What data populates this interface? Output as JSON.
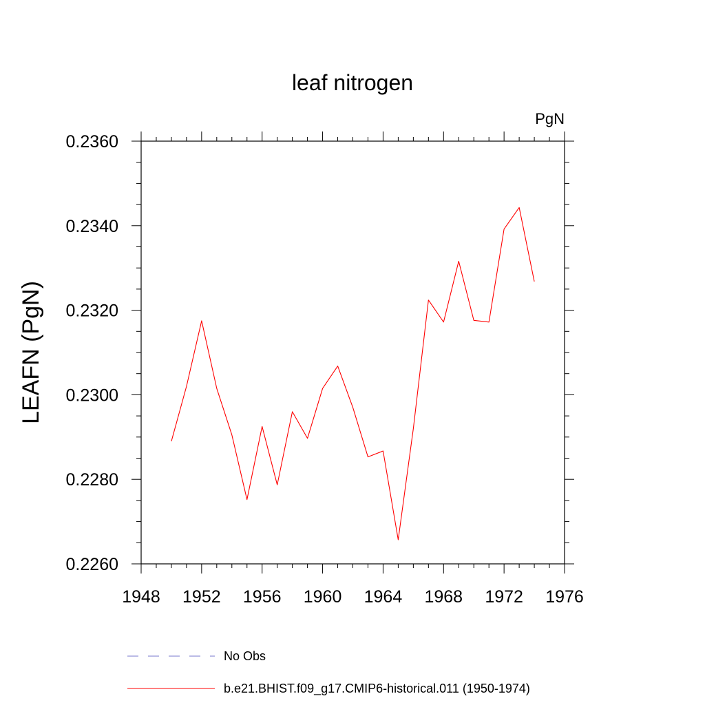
{
  "chart_data": {
    "type": "line",
    "title": "leaf nitrogen",
    "units": "PgN",
    "ylabel": "LEAFN  (PgN)",
    "xlabel": "",
    "xlim": [
      1948,
      1976
    ],
    "ylim": [
      0.226,
      0.236
    ],
    "x_ticks": [
      1948,
      1952,
      1956,
      1960,
      1964,
      1968,
      1972,
      1976
    ],
    "x_tick_labels": [
      "1948",
      "1952",
      "1956",
      "1960",
      "1964",
      "1968",
      "1972",
      "1976"
    ],
    "y_ticks": [
      0.226,
      0.228,
      0.23,
      0.232,
      0.234,
      0.236
    ],
    "y_tick_labels": [
      "0.2260",
      "0.2280",
      "0.2300",
      "0.2320",
      "0.2340",
      "0.2360"
    ],
    "grid": false,
    "legend_position": "bottom",
    "series": [
      {
        "name": "b.e21.BHIST.f09_g17.CMIP6-historical.011 (1950-1974)",
        "color": "#ff0000",
        "style": "solid",
        "x": [
          1950,
          1951,
          1952,
          1953,
          1954,
          1955,
          1956,
          1957,
          1958,
          1959,
          1960,
          1961,
          1962,
          1963,
          1964,
          1965,
          1966,
          1967,
          1968,
          1969,
          1970,
          1971,
          1972,
          1973,
          1974
        ],
        "values": [
          0.2289,
          0.2302,
          0.23175,
          0.23015,
          0.22905,
          0.22752,
          0.22925,
          0.22787,
          0.2296,
          0.22897,
          0.23015,
          0.23068,
          0.2297,
          0.22853,
          0.22867,
          0.22657,
          0.2292,
          0.23224,
          0.23172,
          0.23316,
          0.23176,
          0.23172,
          0.23392,
          0.23443,
          0.23268
        ]
      }
    ],
    "legend": [
      {
        "label": "No Obs",
        "color": "#7777cc",
        "style": "dashed"
      },
      {
        "label": "b.e21.BHIST.f09_g17.CMIP6-historical.011 (1950-1974)",
        "color": "#ff0000",
        "style": "solid"
      }
    ]
  }
}
